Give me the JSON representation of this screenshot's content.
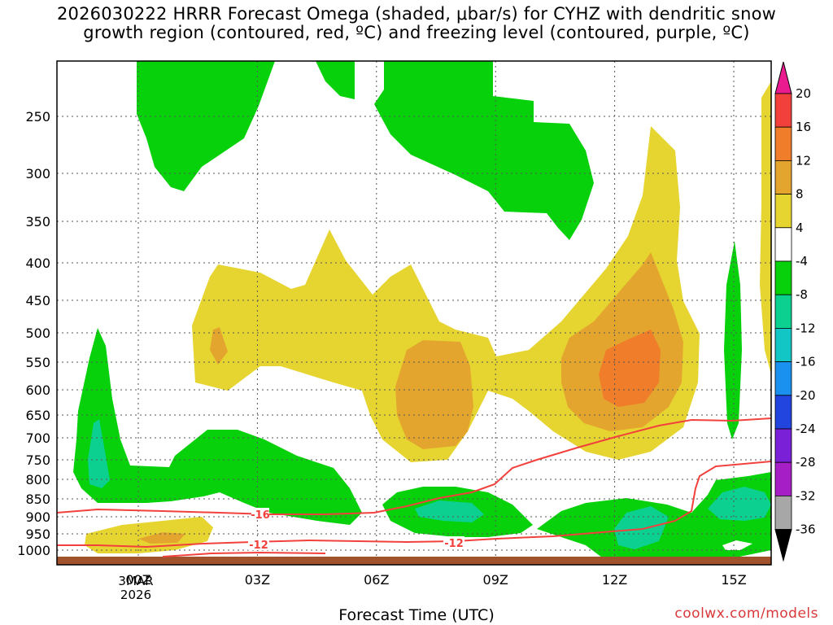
{
  "title_line1": "2026030222 HRRR Forecast Omega (shaded, μbar/s) for CYHZ with dendritic snow",
  "title_line2": "growth region (contoured, red, ºC) and freezing level (contoured, purple, ºC)",
  "credit": "coolwx.com/models",
  "chart_data": {
    "type": "heatmap",
    "xlabel": "Forecast Time (UTC)",
    "ylabel": "",
    "y_scale": "pressure (hPa), log-like, inverted",
    "x_ticks": [
      "00Z",
      "03Z",
      "06Z",
      "09Z",
      "12Z",
      "15Z"
    ],
    "x_date_label": [
      "3MAR",
      "2026"
    ],
    "y_ticks": [
      "250",
      "300",
      "350",
      "400",
      "450",
      "500",
      "550",
      "600",
      "650",
      "700",
      "750",
      "800",
      "850",
      "900",
      "950",
      "1000"
    ],
    "grid": true,
    "colorbar": {
      "labels": [
        "20",
        "16",
        "12",
        "8",
        "4",
        "-4",
        "-8",
        "-12",
        "-16",
        "-20",
        "-24",
        "-28",
        "-32",
        "-36"
      ],
      "colors": [
        "#ea1b8f",
        "#f2413c",
        "#ef7d2a",
        "#e4a52f",
        "#e6d531",
        "#ffffff",
        "#07d10b",
        "#0cd08f",
        "#11c6c5",
        "#1a91ee",
        "#2244df",
        "#7a20d6",
        "#a61ec6",
        "#a7a7a7",
        "#000000"
      ]
    },
    "contour_labels": [
      "-16",
      "-12",
      "-12"
    ],
    "colors": {
      "omega_green": "#07d10b",
      "omega_teal": "#0cd08f",
      "omega_yellow": "#e6d531",
      "omega_gold": "#e4a52f",
      "omega_orange": "#ef7d2a",
      "dgz_line": "#f2413c",
      "ground": "#a0522d"
    }
  }
}
